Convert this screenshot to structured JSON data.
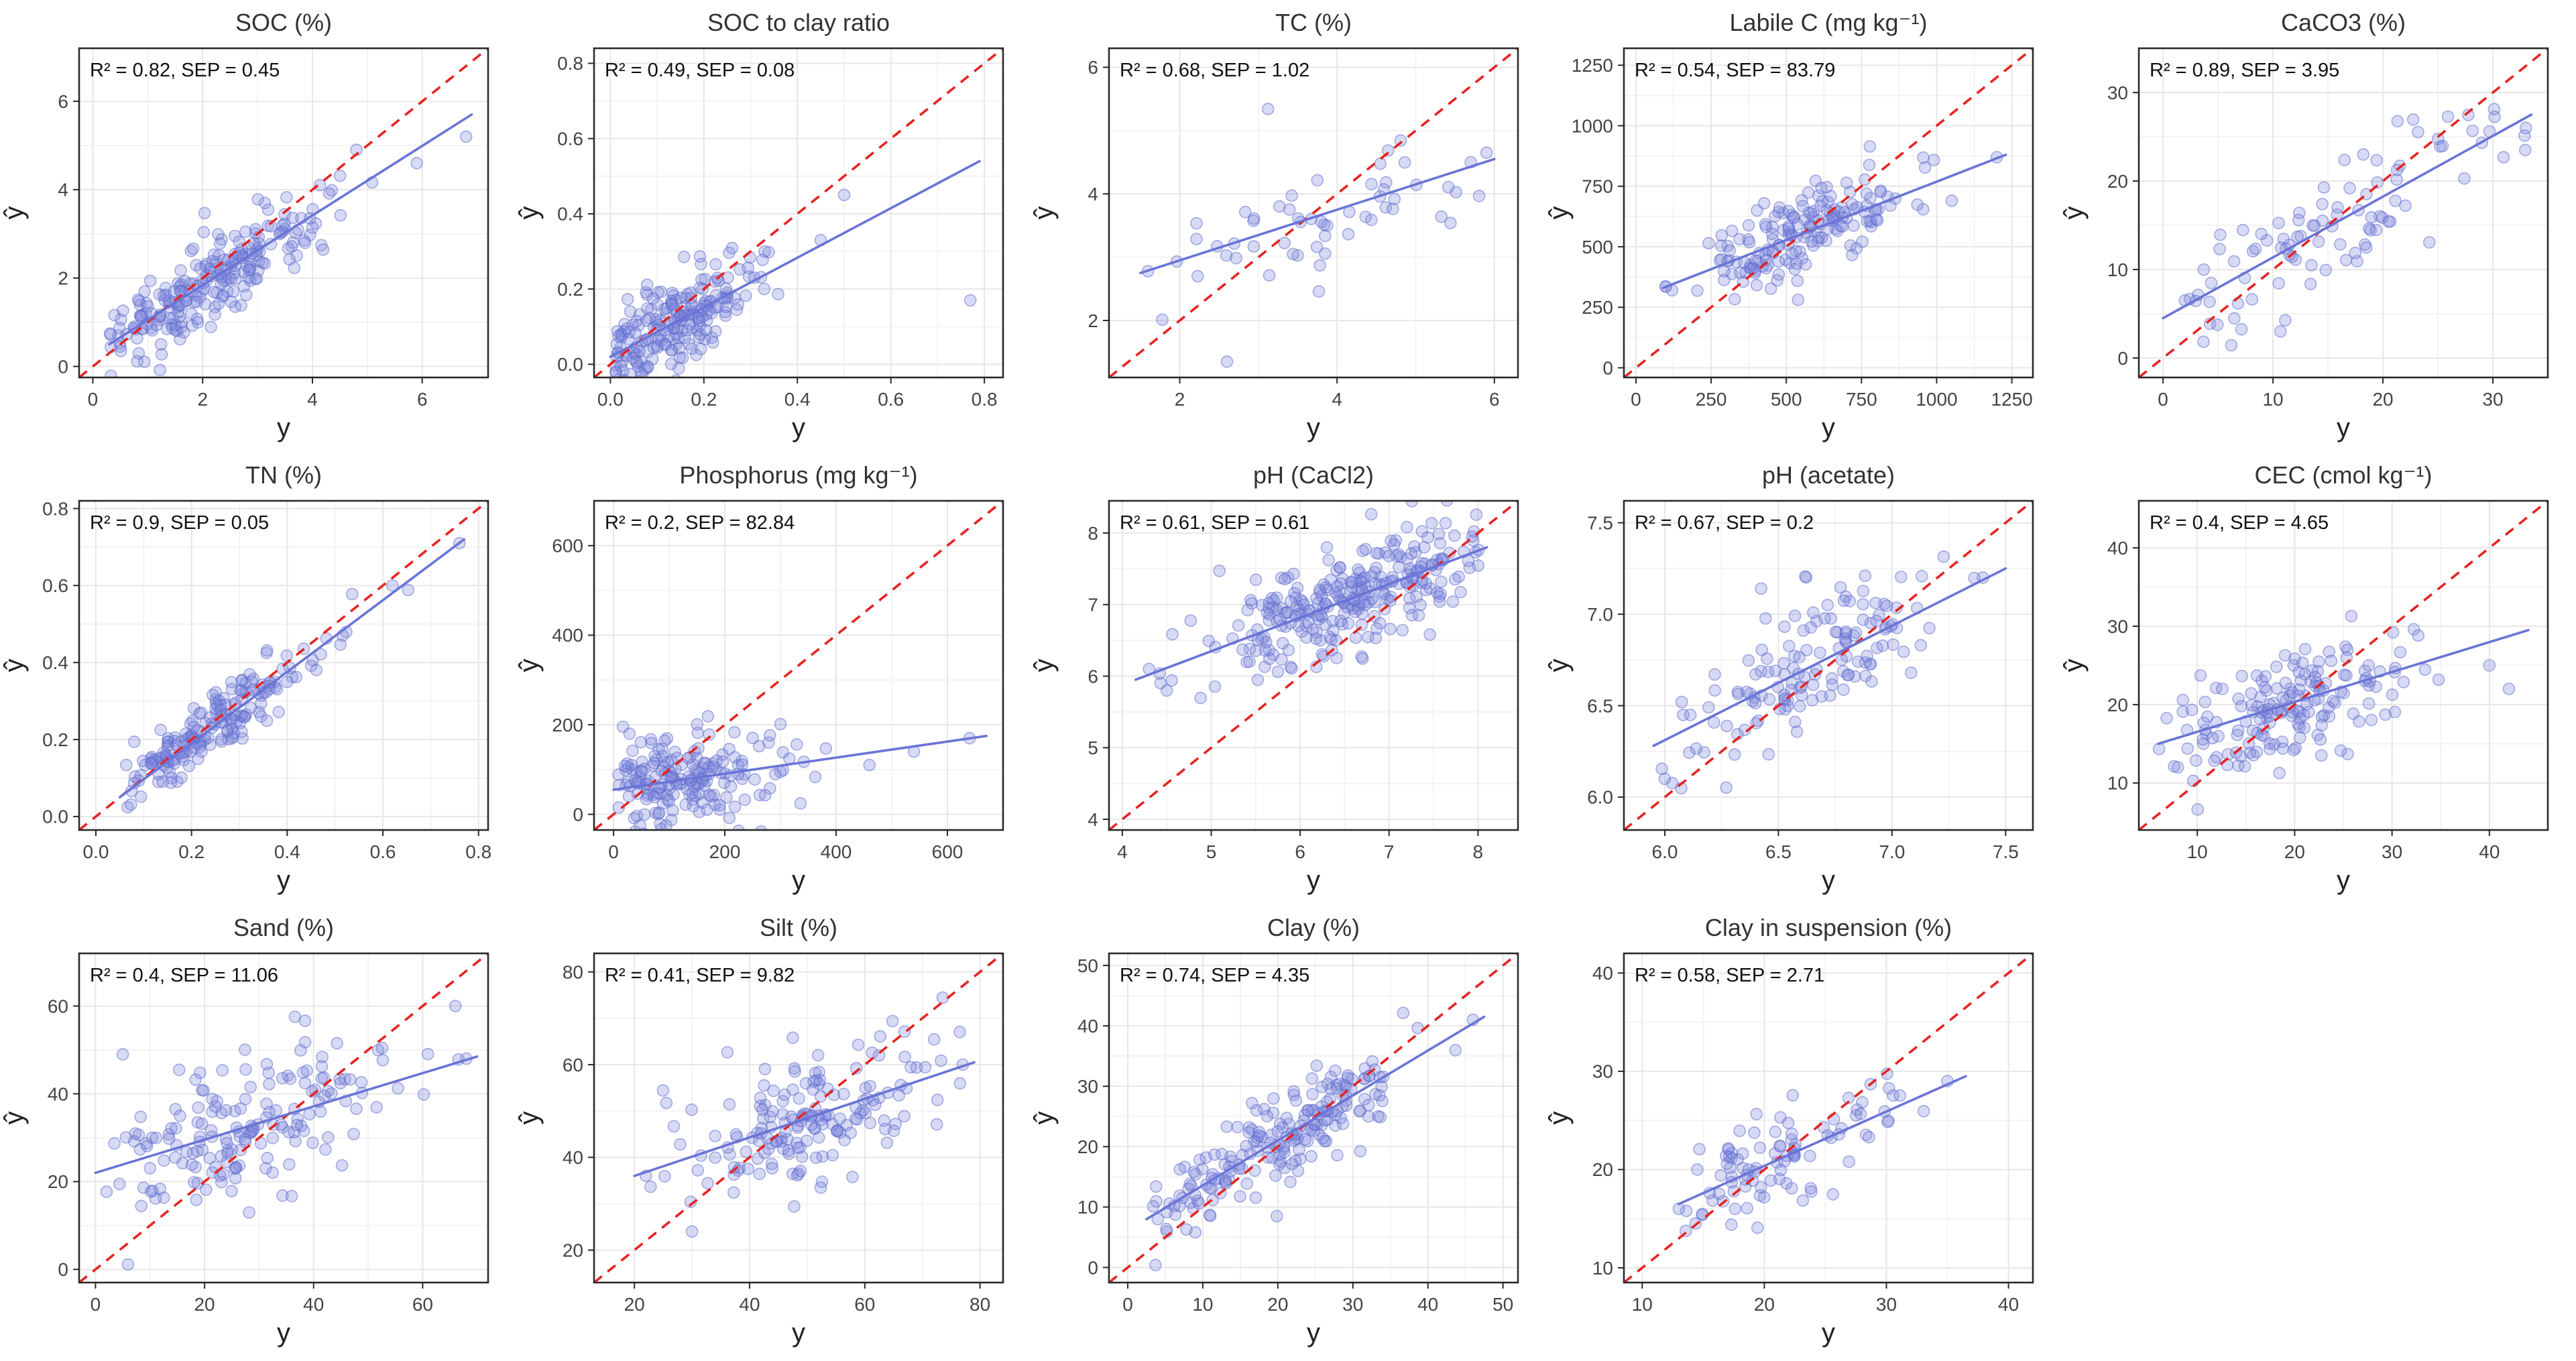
{
  "figure": {
    "description_visible_text_only": "",
    "axis_labels": {
      "x": "y",
      "y": "ŷ"
    }
  },
  "styles": {
    "background": "#ffffff",
    "point_fill": "#7b84dc",
    "point_stroke": "#5a66cc",
    "point_fill_opacity": 0.3,
    "point_stroke_opacity": 0.5,
    "fit_color": "#6a74d6",
    "identity_color": "#e62320",
    "grid_major": "#e7e7e7",
    "grid_minor": "#f3f3f3",
    "axis_color": "#2b2b2b",
    "title_color": "#333333",
    "tick_label_color": "#444444",
    "annotation_color": "#111111"
  },
  "chart_data": [
    {
      "type": "scatter",
      "title": "SOC (%)",
      "annotation": "R² = 0.82, SEP = 0.45",
      "r2": 0.82,
      "sep": 0.45,
      "xlabel": "y",
      "ylabel": "ŷ",
      "xlim": [
        -0.25,
        7.2
      ],
      "ylim": [
        -0.25,
        7.2
      ],
      "xticks": [
        0,
        2,
        4,
        6
      ],
      "yticks": [
        0,
        2,
        4,
        6
      ],
      "tick_decimals": 0,
      "fit_line": {
        "x1": 0.3,
        "y1": 0.5,
        "x2": 6.9,
        "y2": 5.7
      },
      "identity_line": true,
      "points": {
        "n": 230,
        "x_mean": 2.0,
        "x_sd": 1.2,
        "x_min": 0.3,
        "x_max": 6.9,
        "noise_sd": 0.45,
        "seed": 1
      },
      "extra_points": [
        [
          6.8,
          5.2
        ],
        [
          5.9,
          4.6
        ],
        [
          4.8,
          4.9
        ]
      ]
    },
    {
      "type": "scatter",
      "title": "SOC to clay ratio",
      "annotation": "R² = 0.49, SEP = 0.08",
      "r2": 0.49,
      "sep": 0.08,
      "xlabel": "y",
      "ylabel": "ŷ",
      "xlim": [
        -0.035,
        0.84
      ],
      "ylim": [
        -0.035,
        0.84
      ],
      "xticks": [
        0,
        0.2,
        0.4,
        0.6,
        0.8
      ],
      "yticks": [
        0,
        0.2,
        0.4,
        0.6,
        0.8
      ],
      "tick_decimals": 1,
      "fit_line": {
        "x1": 0.0,
        "y1": 0.02,
        "x2": 0.79,
        "y2": 0.54
      },
      "identity_line": true,
      "points": {
        "n": 210,
        "x_mean": 0.12,
        "x_sd": 0.1,
        "x_min": 0.01,
        "x_max": 0.78,
        "noise_sd": 0.06,
        "seed": 2
      },
      "extra_points": [
        [
          0.77,
          0.17
        ],
        [
          0.45,
          0.33
        ],
        [
          0.5,
          0.45
        ],
        [
          0.33,
          0.3
        ]
      ]
    },
    {
      "type": "scatter",
      "title": "TC (%)",
      "annotation": "R² = 0.68, SEP = 1.02",
      "r2": 0.68,
      "sep": 1.02,
      "xlabel": "y",
      "ylabel": "ŷ",
      "xlim": [
        1.1,
        6.3
      ],
      "ylim": [
        1.1,
        6.3
      ],
      "xticks": [
        2,
        4,
        6
      ],
      "yticks": [
        2,
        4,
        6
      ],
      "tick_decimals": 0,
      "fit_line": {
        "x1": 1.5,
        "y1": 2.75,
        "x2": 6.0,
        "y2": 4.55
      },
      "identity_line": true,
      "points": {
        "n": 55,
        "x_mean": 3.8,
        "x_sd": 1.5,
        "x_min": 1.4,
        "x_max": 5.9,
        "noise_sd": 0.5,
        "seed": 3
      },
      "extra_points": [
        [
          5.7,
          4.5
        ],
        [
          5.9,
          4.65
        ],
        [
          2.6,
          1.35
        ]
      ]
    },
    {
      "type": "scatter",
      "title": "Labile C (mg kg⁻¹)",
      "annotation": "R² = 0.54, SEP = 83.79",
      "r2": 0.54,
      "sep": 83.79,
      "xlabel": "y",
      "ylabel": "ŷ",
      "xlim": [
        -40,
        1320
      ],
      "ylim": [
        -40,
        1320
      ],
      "xticks": [
        0,
        250,
        500,
        750,
        1000,
        1250
      ],
      "yticks": [
        0,
        250,
        500,
        750,
        1000,
        1250
      ],
      "tick_decimals": 0,
      "fit_line": {
        "x1": 90,
        "y1": 330,
        "x2": 1230,
        "y2": 880
      },
      "identity_line": true,
      "points": {
        "n": 170,
        "x_mean": 560,
        "x_sd": 170,
        "x_min": 90,
        "x_max": 1230,
        "noise_sd": 85,
        "seed": 4
      },
      "extra_points": [
        [
          1200,
          870
        ],
        [
          1050,
          690
        ],
        [
          120,
          320
        ]
      ]
    },
    {
      "type": "scatter",
      "title": "CaCO3 (%)",
      "annotation": "R² = 0.89, SEP = 3.95",
      "r2": 0.89,
      "sep": 3.95,
      "xlabel": "y",
      "ylabel": "ŷ",
      "xlim": [
        -2.2,
        35
      ],
      "ylim": [
        -2.2,
        35
      ],
      "xticks": [
        0,
        10,
        20,
        30
      ],
      "yticks": [
        0,
        10,
        20,
        30
      ],
      "tick_decimals": 0,
      "fit_line": {
        "x1": 0,
        "y1": 4.5,
        "x2": 33.5,
        "y2": 27.5
      },
      "identity_line": true,
      "points": {
        "n": 95,
        "x_mean": 16,
        "x_sd": 9.5,
        "x_min": 0.2,
        "x_max": 33.5,
        "noise_sd": 3.6,
        "seed": 5
      },
      "extra_points": [
        [
          33,
          26
        ],
        [
          2,
          6.5
        ]
      ]
    },
    {
      "type": "scatter",
      "title": "TN (%)",
      "annotation": "R² = 0.9, SEP = 0.05",
      "r2": 0.9,
      "sep": 0.05,
      "xlabel": "y",
      "ylabel": "ŷ",
      "xlim": [
        -0.035,
        0.82
      ],
      "ylim": [
        -0.035,
        0.82
      ],
      "xticks": [
        0,
        0.2,
        0.4,
        0.6,
        0.8
      ],
      "yticks": [
        0,
        0.2,
        0.4,
        0.6,
        0.8
      ],
      "tick_decimals": 1,
      "fit_line": {
        "x1": 0.05,
        "y1": 0.05,
        "x2": 0.77,
        "y2": 0.72
      },
      "identity_line": true,
      "points": {
        "n": 190,
        "x_mean": 0.22,
        "x_sd": 0.12,
        "x_min": 0.05,
        "x_max": 0.77,
        "noise_sd": 0.04,
        "seed": 6
      },
      "extra_points": [
        [
          0.76,
          0.71
        ],
        [
          0.62,
          0.6
        ]
      ]
    },
    {
      "type": "scatter",
      "title": "Phosphorus (mg kg⁻¹)",
      "annotation": "R² = 0.2, SEP = 82.84",
      "r2": 0.2,
      "sep": 82.84,
      "xlabel": "y",
      "ylabel": "ŷ",
      "xlim": [
        -35,
        700
      ],
      "ylim": [
        -35,
        700
      ],
      "xticks": [
        0,
        200,
        400,
        600
      ],
      "yticks": [
        0,
        200,
        400,
        600
      ],
      "tick_decimals": 0,
      "fit_line": {
        "x1": 0,
        "y1": 55,
        "x2": 670,
        "y2": 175
      },
      "identity_line": true,
      "points": {
        "n": 190,
        "x_mean": 110,
        "x_sd": 95,
        "x_min": 5,
        "x_max": 670,
        "noise_sd": 55,
        "seed": 7
      },
      "extra_points": [
        [
          640,
          170
        ],
        [
          540,
          140
        ],
        [
          460,
          110
        ],
        [
          300,
          95
        ]
      ]
    },
    {
      "type": "scatter",
      "title": "pH (CaCl2)",
      "annotation": "R² = 0.61, SEP = 0.61",
      "r2": 0.61,
      "sep": 0.61,
      "xlabel": "y",
      "ylabel": "ŷ",
      "xlim": [
        3.85,
        8.45
      ],
      "ylim": [
        3.85,
        8.45
      ],
      "xticks": [
        4,
        5,
        6,
        7,
        8
      ],
      "yticks": [
        4,
        5,
        6,
        7,
        8
      ],
      "tick_decimals": 0,
      "fit_line": {
        "x1": 4.15,
        "y1": 5.95,
        "x2": 8.1,
        "y2": 7.8
      },
      "identity_line": true,
      "points": {
        "n": 280,
        "x_mean": 6.7,
        "x_sd": 0.85,
        "x_min": 4.2,
        "x_max": 8.05,
        "noise_sd": 0.36,
        "seed": 8
      },
      "extra_points": [
        [
          4.3,
          6.1
        ],
        [
          4.5,
          5.8
        ]
      ]
    },
    {
      "type": "scatter",
      "title": "pH (acetate)",
      "annotation": "R² = 0.67, SEP = 0.2",
      "r2": 0.67,
      "sep": 0.2,
      "xlabel": "y",
      "ylabel": "ŷ",
      "xlim": [
        5.82,
        7.62
      ],
      "ylim": [
        5.82,
        7.62
      ],
      "xticks": [
        6.0,
        6.5,
        7.0,
        7.5
      ],
      "yticks": [
        6.0,
        6.5,
        7.0,
        7.5
      ],
      "tick_decimals": 1,
      "fit_line": {
        "x1": 5.95,
        "y1": 6.28,
        "x2": 7.5,
        "y2": 7.25
      },
      "identity_line": true,
      "points": {
        "n": 140,
        "x_mean": 6.6,
        "x_sd": 0.32,
        "x_min": 5.95,
        "x_max": 7.45,
        "noise_sd": 0.17,
        "seed": 9
      },
      "extra_points": [
        [
          7.4,
          7.2
        ],
        [
          6.0,
          6.1
        ]
      ]
    },
    {
      "type": "scatter",
      "title": "CEC (cmol kg⁻¹)",
      "annotation": "R² = 0.4, SEP = 4.65",
      "r2": 0.4,
      "sep": 4.65,
      "xlabel": "y",
      "ylabel": "ŷ",
      "xlim": [
        4,
        46
      ],
      "ylim": [
        4,
        46
      ],
      "xticks": [
        10,
        20,
        30,
        40
      ],
      "yticks": [
        10,
        20,
        30,
        40
      ],
      "tick_decimals": 0,
      "fit_line": {
        "x1": 6,
        "y1": 15,
        "x2": 44,
        "y2": 29.5
      },
      "identity_line": true,
      "points": {
        "n": 170,
        "x_mean": 20,
        "x_sd": 6.5,
        "x_min": 6,
        "x_max": 43,
        "noise_sd": 3.5,
        "seed": 10
      },
      "extra_points": [
        [
          42,
          22
        ],
        [
          40,
          25
        ],
        [
          8,
          12
        ]
      ]
    },
    {
      "type": "scatter",
      "title": "Sand (%)",
      "annotation": "R² = 0.4, SEP = 11.06",
      "r2": 0.4,
      "sep": 11.06,
      "xlabel": "y",
      "ylabel": "ŷ",
      "xlim": [
        -3,
        72
      ],
      "ylim": [
        -3,
        72
      ],
      "xticks": [
        0,
        20,
        40,
        60
      ],
      "yticks": [
        0,
        20,
        40,
        60
      ],
      "tick_decimals": 0,
      "fit_line": {
        "x1": 0,
        "y1": 22,
        "x2": 70,
        "y2": 48.5
      },
      "identity_line": true,
      "points": {
        "n": 170,
        "x_mean": 28,
        "x_sd": 14,
        "x_min": 2,
        "x_max": 69,
        "noise_sd": 9,
        "seed": 11
      },
      "extra_points": [
        [
          66,
          60
        ],
        [
          68,
          48
        ],
        [
          5,
          49
        ]
      ]
    },
    {
      "type": "scatter",
      "title": "Silt (%)",
      "annotation": "R² = 0.41, SEP = 9.82",
      "r2": 0.41,
      "sep": 9.82,
      "xlabel": "y",
      "ylabel": "ŷ",
      "xlim": [
        13,
        84
      ],
      "ylim": [
        13,
        84
      ],
      "xticks": [
        20,
        40,
        60,
        80
      ],
      "yticks": [
        20,
        40,
        60,
        80
      ],
      "tick_decimals": 0,
      "fit_line": {
        "x1": 20,
        "y1": 36,
        "x2": 79,
        "y2": 60.5
      },
      "identity_line": true,
      "points": {
        "n": 170,
        "x_mean": 52,
        "x_sd": 12,
        "x_min": 21,
        "x_max": 78,
        "noise_sd": 7,
        "seed": 12
      },
      "extra_points": [
        [
          22,
          36
        ],
        [
          77,
          60
        ],
        [
          30,
          24
        ]
      ]
    },
    {
      "type": "scatter",
      "title": "Clay (%)",
      "annotation": "R² = 0.74, SEP = 4.35",
      "r2": 0.74,
      "sep": 4.35,
      "xlabel": "y",
      "ylabel": "ŷ",
      "xlim": [
        -2.5,
        52
      ],
      "ylim": [
        -2.5,
        52
      ],
      "xticks": [
        0,
        10,
        20,
        30,
        40,
        50
      ],
      "yticks": [
        0,
        10,
        20,
        30,
        40,
        50
      ],
      "tick_decimals": 0,
      "fit_line": {
        "x1": 2.5,
        "y1": 8,
        "x2": 47.5,
        "y2": 41.5
      },
      "identity_line": true,
      "points": {
        "n": 200,
        "x_mean": 20,
        "x_sd": 9,
        "x_min": 3,
        "x_max": 47,
        "noise_sd": 4,
        "seed": 13
      },
      "extra_points": [
        [
          46,
          41
        ],
        [
          4,
          8
        ]
      ]
    },
    {
      "type": "scatter",
      "title": "Clay in suspension (%)",
      "annotation": "R² = 0.58, SEP = 2.71",
      "r2": 0.58,
      "sep": 2.71,
      "xlabel": "y",
      "ylabel": "ŷ",
      "xlim": [
        8.5,
        42
      ],
      "ylim": [
        8.5,
        42
      ],
      "xticks": [
        10,
        20,
        30,
        40
      ],
      "yticks": [
        10,
        20,
        30,
        40
      ],
      "tick_decimals": 0,
      "fit_line": {
        "x1": 13,
        "y1": 16.5,
        "x2": 36.5,
        "y2": 29.5
      },
      "identity_line": true,
      "points": {
        "n": 95,
        "x_mean": 21,
        "x_sd": 5,
        "x_min": 13,
        "x_max": 36,
        "noise_sd": 2.2,
        "seed": 14
      },
      "extra_points": [
        [
          35,
          29
        ],
        [
          13,
          16
        ]
      ]
    }
  ]
}
